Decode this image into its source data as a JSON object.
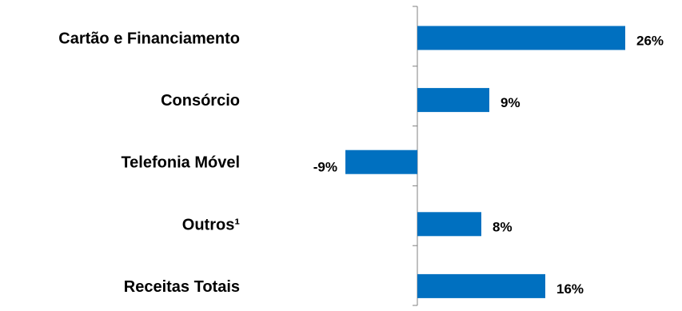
{
  "chart_data": {
    "type": "bar",
    "orientation": "horizontal",
    "categories": [
      "Cartão e Financiamento",
      "Consórcio",
      "Telefonia Móvel",
      "Outros¹",
      "Receitas Totais"
    ],
    "values": [
      26,
      9,
      -9,
      8,
      16
    ],
    "value_labels": [
      "26%",
      "9%",
      "-9%",
      "8%",
      "16%"
    ],
    "unit": "%",
    "bar_color": "#0070C0",
    "axis_color": "#808080",
    "grid": false,
    "legend": "none"
  }
}
